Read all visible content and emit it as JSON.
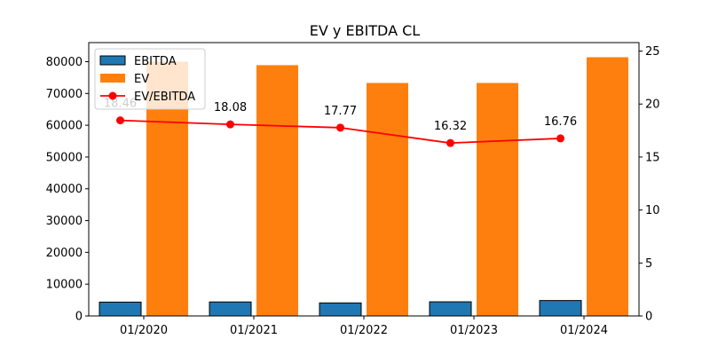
{
  "chart_data": {
    "type": "bar",
    "title": "EV y EBITDA CL",
    "xlabel": "",
    "ylabel": "",
    "categories": [
      "01/2020",
      "01/2021",
      "01/2022",
      "01/2023",
      "01/2024"
    ],
    "series": [
      {
        "name": "EBITDA",
        "type": "bar",
        "axis": "left",
        "color": "#1f77b4",
        "values": [
          4350,
          4400,
          4100,
          4450,
          4850
        ]
      },
      {
        "name": "EV",
        "type": "bar",
        "axis": "left",
        "color": "#ff7f0e",
        "values": [
          80000,
          78900,
          73300,
          73300,
          81400
        ]
      },
      {
        "name": "EV/EBITDA",
        "type": "line",
        "axis": "right",
        "color": "#ff0000",
        "values": [
          18.46,
          18.08,
          17.77,
          16.32,
          16.76
        ],
        "labels": [
          "18.46",
          "18.08",
          "17.77",
          "16.32",
          "16.76"
        ]
      }
    ],
    "ylim": [
      0,
      86000
    ],
    "yticks": [
      0,
      10000,
      20000,
      30000,
      40000,
      50000,
      60000,
      70000,
      80000
    ],
    "y2lim": [
      0,
      25.8
    ],
    "y2ticks": [
      0,
      5,
      10,
      15,
      20,
      25
    ],
    "legend": {
      "placement": "upper-left",
      "entries": [
        "EBITDA",
        "EV",
        "EV/EBITDA"
      ]
    },
    "grid": false
  }
}
